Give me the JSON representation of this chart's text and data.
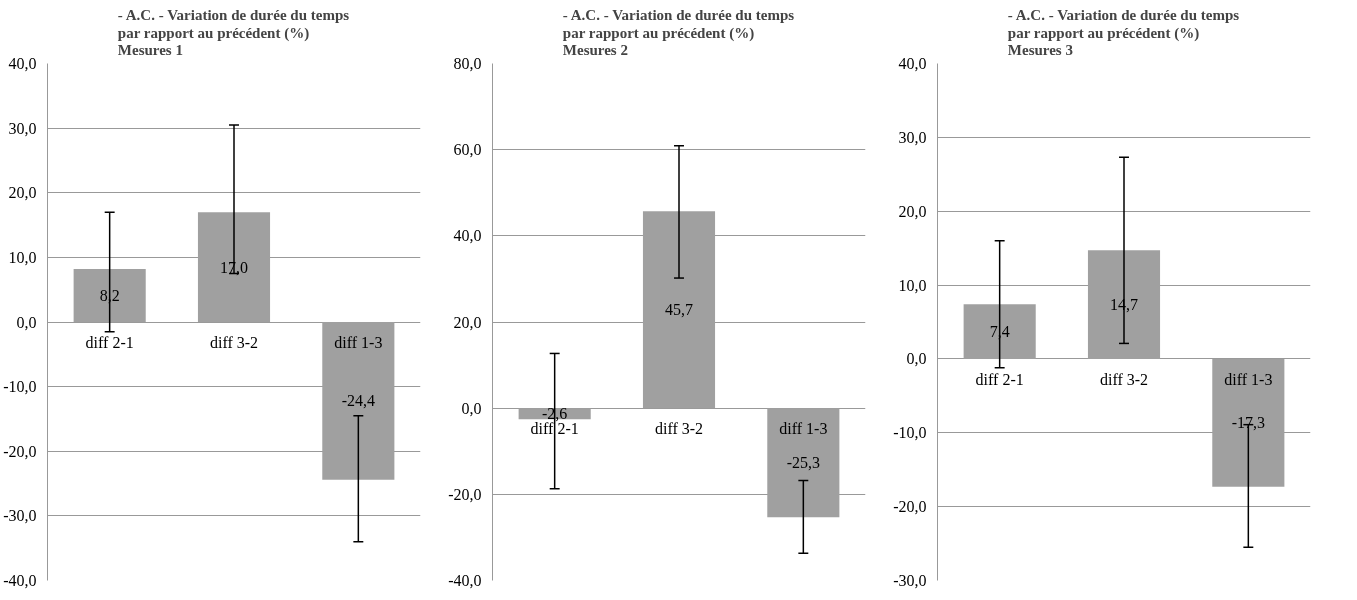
{
  "chart_data": [
    {
      "type": "bar",
      "title": "- A.C. - Variation de durée du temps\npar rapport au précédent (%)\nMesures 1",
      "categories": [
        "diff 2-1",
        "diff 3-2",
        "diff 1-3"
      ],
      "values": [
        8.2,
        17.0,
        -24.4
      ],
      "value_labels": [
        "8,2",
        "17,0",
        "-24,4"
      ],
      "errors": [
        [
          -1.5,
          17.0
        ],
        [
          7.5,
          30.5
        ],
        [
          -34.0,
          -14.5
        ]
      ],
      "color": "#a0a0a0",
      "ylim": [
        -40,
        40
      ],
      "yticks": [
        {
          "value": -40,
          "label": "-40,0"
        },
        {
          "value": -30,
          "label": "-30,0"
        },
        {
          "value": -20,
          "label": "-20,0"
        },
        {
          "value": -10,
          "label": "-10,0"
        },
        {
          "value": 0,
          "label": "0,0"
        },
        {
          "value": 10,
          "label": "10,0"
        },
        {
          "value": 20,
          "label": "20,0"
        },
        {
          "value": 30,
          "label": "30,0"
        },
        {
          "value": 40,
          "label": "40,0"
        }
      ],
      "grid": "y"
    },
    {
      "type": "bar",
      "title": "- A.C. - Variation de durée du temps\npar rapport au précédent (%)\nMesures 2",
      "categories": [
        "diff 2-1",
        "diff 3-2",
        "diff 1-3"
      ],
      "values": [
        -2.6,
        45.7,
        -25.3
      ],
      "value_labels": [
        "-2,6",
        "45,7",
        "-25,3"
      ],
      "errors": [
        [
          -18.7,
          12.7
        ],
        [
          30.2,
          60.9
        ],
        [
          -33.7,
          -16.8
        ]
      ],
      "color": "#a0a0a0",
      "ylim": [
        -40,
        80
      ],
      "yticks": [
        {
          "value": -40,
          "label": "-40,0"
        },
        {
          "value": -20,
          "label": "-20,0"
        },
        {
          "value": 0,
          "label": "0,0"
        },
        {
          "value": 20,
          "label": "20,0"
        },
        {
          "value": 40,
          "label": "40,0"
        },
        {
          "value": 60,
          "label": "60,0"
        },
        {
          "value": 80,
          "label": "80,0"
        }
      ],
      "grid": "y"
    },
    {
      "type": "bar",
      "title": "- A.C. - Variation de durée du temps\npar rapport au précédent (%)\nMesures 3",
      "categories": [
        "diff 2-1",
        "diff 3-2",
        "diff 1-3"
      ],
      "values": [
        7.4,
        14.7,
        -17.3
      ],
      "value_labels": [
        "7,4",
        "14,7",
        "-17,3"
      ],
      "errors": [
        [
          -1.2,
          16.0
        ],
        [
          2.1,
          27.3
        ],
        [
          -25.5,
          -8.9
        ]
      ],
      "color": "#a0a0a0",
      "ylim": [
        -30,
        40
      ],
      "yticks": [
        {
          "value": -30,
          "label": "-30,0"
        },
        {
          "value": -20,
          "label": "-20,0"
        },
        {
          "value": -10,
          "label": "-10,0"
        },
        {
          "value": 0,
          "label": "0,0"
        },
        {
          "value": 10,
          "label": "10,0"
        },
        {
          "value": 20,
          "label": "20,0"
        },
        {
          "value": 30,
          "label": "30,0"
        },
        {
          "value": 40,
          "label": "40,0"
        }
      ],
      "grid": "y"
    }
  ]
}
